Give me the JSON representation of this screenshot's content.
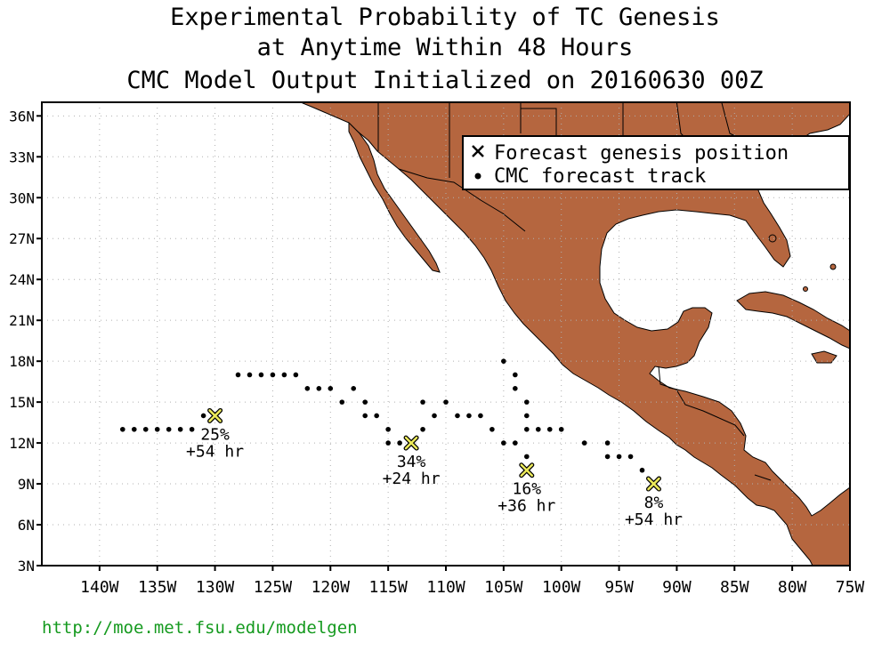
{
  "title": {
    "line1": "Experimental Probability of TC Genesis",
    "line2": "at Anytime Within 48 Hours",
    "line3": "CMC Model Output Initialized on 20160630 00Z"
  },
  "url": "http://moe.met.fsu.edu/modelgen",
  "colors": {
    "land": "#b5663f",
    "grid": "#b0b0b0",
    "marker_fill": "#ecea5a",
    "url": "#159a1f"
  },
  "legend": {
    "genesis_label": "Forecast genesis position",
    "track_label": "CMC forecast track",
    "placement": "top-right"
  },
  "axes": {
    "lon_range": [
      -145,
      -75
    ],
    "lat_range": [
      3,
      37
    ],
    "lon_ticks": [
      {
        "v": -140,
        "label": "140W"
      },
      {
        "v": -135,
        "label": "135W"
      },
      {
        "v": -130,
        "label": "130W"
      },
      {
        "v": -125,
        "label": "125W"
      },
      {
        "v": -120,
        "label": "120W"
      },
      {
        "v": -115,
        "label": "115W"
      },
      {
        "v": -110,
        "label": "110W"
      },
      {
        "v": -105,
        "label": "105W"
      },
      {
        "v": -100,
        "label": "100W"
      },
      {
        "v": -95,
        "label": "95W"
      },
      {
        "v": -90,
        "label": "90W"
      },
      {
        "v": -85,
        "label": "85W"
      },
      {
        "v": -80,
        "label": "80W"
      },
      {
        "v": -75,
        "label": "75W"
      }
    ],
    "lat_ticks": [
      {
        "v": 3,
        "label": "3N"
      },
      {
        "v": 6,
        "label": "6N"
      },
      {
        "v": 9,
        "label": "9N"
      },
      {
        "v": 12,
        "label": "12N"
      },
      {
        "v": 15,
        "label": "15N"
      },
      {
        "v": 18,
        "label": "18N"
      },
      {
        "v": 21,
        "label": "21N"
      },
      {
        "v": 24,
        "label": "24N"
      },
      {
        "v": 27,
        "label": "27N"
      },
      {
        "v": 30,
        "label": "30N"
      },
      {
        "v": 33,
        "label": "33N"
      },
      {
        "v": 36,
        "label": "36N"
      }
    ],
    "grid": true
  },
  "genesis": [
    {
      "lon": -130,
      "lat": 14,
      "prob": "25%",
      "lead": "+54 hr"
    },
    {
      "lon": -113,
      "lat": 12,
      "prob": "34%",
      "lead": "+24 hr"
    },
    {
      "lon": -103,
      "lat": 10,
      "prob": "16%",
      "lead": "+36 hr"
    },
    {
      "lon": -92,
      "lat": 9,
      "prob": "8%",
      "lead": "+54 hr"
    }
  ],
  "tracks": [
    [
      [
        -138,
        13
      ],
      [
        -137,
        13
      ],
      [
        -136,
        13
      ],
      [
        -135,
        13
      ],
      [
        -134,
        13
      ],
      [
        -133,
        13
      ],
      [
        -132,
        13
      ],
      [
        -131,
        14
      ]
    ],
    [
      [
        -115,
        12
      ],
      [
        -114,
        12
      ],
      [
        -115,
        13
      ],
      [
        -116,
        14
      ],
      [
        -117,
        14
      ],
      [
        -117,
        15
      ],
      [
        -118,
        16
      ],
      [
        -119,
        15
      ],
      [
        -120,
        16
      ],
      [
        -121,
        16
      ],
      [
        -122,
        16
      ],
      [
        -123,
        17
      ],
      [
        -124,
        17
      ],
      [
        -125,
        17
      ],
      [
        -126,
        17
      ],
      [
        -127,
        17
      ],
      [
        -128,
        17
      ]
    ],
    [
      [
        -112,
        13
      ],
      [
        -111,
        14
      ],
      [
        -112,
        15
      ],
      [
        -110,
        15
      ],
      [
        -109,
        14
      ],
      [
        -108,
        14
      ],
      [
        -107,
        14
      ],
      [
        -106,
        13
      ],
      [
        -105,
        12
      ],
      [
        -104,
        12
      ]
    ],
    [
      [
        -103,
        11
      ],
      [
        -103,
        13
      ],
      [
        -102,
        13
      ],
      [
        -101,
        13
      ],
      [
        -100,
        13
      ],
      [
        -103,
        14
      ],
      [
        -103,
        15
      ],
      [
        -104,
        16
      ],
      [
        -104,
        17
      ],
      [
        -105,
        18
      ]
    ],
    [
      [
        -93,
        10
      ],
      [
        -94,
        11
      ],
      [
        -95,
        11
      ],
      [
        -96,
        11
      ],
      [
        -96,
        12
      ],
      [
        -98,
        12
      ]
    ]
  ]
}
